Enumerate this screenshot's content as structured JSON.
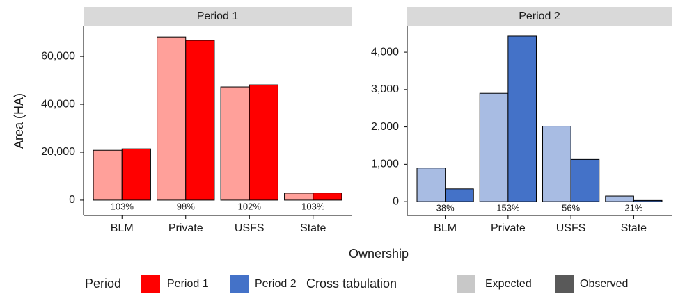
{
  "chart_data": [
    {
      "type": "bar",
      "title": "Period 1",
      "categories": [
        "BLM",
        "Private",
        "USFS",
        "State"
      ],
      "series": [
        {
          "name": "Expected",
          "color": "#ffa09a",
          "values": [
            20800,
            68100,
            47250,
            2900
          ]
        },
        {
          "name": "Observed",
          "color": "#ff0000",
          "values": [
            21400,
            66700,
            48100,
            2990
          ]
        }
      ],
      "ratio_labels": [
        "103%",
        "98%",
        "102%",
        "103%"
      ],
      "ylim": [
        -6400,
        72500
      ],
      "yticks": [
        0,
        {
          "value": 20000,
          "label": "20,000"
        },
        {
          "value": 40000,
          "label": "40,000"
        },
        {
          "value": 60000,
          "label": "60,000"
        }
      ]
    },
    {
      "type": "bar",
      "title": "Period 2",
      "categories": [
        "BLM",
        "Private",
        "USFS",
        "State"
      ],
      "series": [
        {
          "name": "Expected",
          "color": "#a8bce3",
          "values": [
            900,
            2900,
            2020,
            150
          ]
        },
        {
          "name": "Observed",
          "color": "#4472c8",
          "values": [
            340,
            4430,
            1130,
            32
          ]
        }
      ],
      "ratio_labels": [
        "38%",
        "153%",
        "56%",
        "21%"
      ],
      "ylim": [
        -370,
        4690
      ],
      "yticks": [
        0,
        {
          "value": 1000,
          "label": "1,000"
        },
        {
          "value": 2000,
          "label": "2,000"
        },
        {
          "value": 3000,
          "label": "3,000"
        },
        {
          "value": 4000,
          "label": "4,000"
        }
      ]
    }
  ],
  "y_label": "Area (HA)",
  "x_label": "Ownership",
  "legend": {
    "period_title": "Period",
    "crosstab_title": "Cross tabulation",
    "expected_color": "#c8c8c8",
    "observed_color": "#595959"
  }
}
